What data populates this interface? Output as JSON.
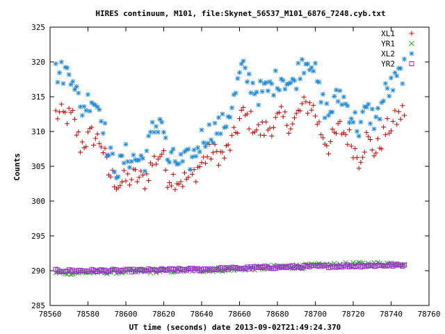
{
  "chart_data": {
    "type": "scatter",
    "title": "HIRES continuum, M101, file:Skynet_56537_M101_6876_7248.cyb.txt",
    "xlabel": "UT time (seconds) date 2013-09-02T21:49:24.370",
    "ylabel": "Counts",
    "xlim": [
      78560,
      78760
    ],
    "ylim": [
      285,
      325
    ],
    "xticks": [
      78560,
      78580,
      78600,
      78620,
      78640,
      78660,
      78680,
      78700,
      78720,
      78740,
      78760
    ],
    "yticks": [
      285,
      290,
      295,
      300,
      305,
      310,
      315,
      320,
      325
    ],
    "xtick_labels": [
      "78560",
      "78580",
      "78600",
      "78620",
      "78640",
      "78660",
      "78680",
      "78700",
      "78720",
      "78740",
      "78760"
    ],
    "ytick_labels": [
      "285",
      "290",
      "295",
      "300",
      "305",
      "310",
      "315",
      "320",
      "325"
    ],
    "grid": false,
    "legend_position": "top-right",
    "x_start": 78563,
    "x_end": 78747,
    "series": [
      {
        "name": "XL1",
        "marker": "plus",
        "color": "#cc0000",
        "knots": [
          [
            78563,
            312.5
          ],
          [
            78572,
            312
          ],
          [
            78576,
            308
          ],
          [
            78582,
            309.5
          ],
          [
            78587,
            308.5
          ],
          [
            78591,
            304
          ],
          [
            78596,
            302.5
          ],
          [
            78600,
            303
          ],
          [
            78605,
            303.5
          ],
          [
            78610,
            303
          ],
          [
            78614,
            305.5
          ],
          [
            78619,
            307
          ],
          [
            78622,
            303.5
          ],
          [
            78630,
            303
          ],
          [
            78635,
            303.5
          ],
          [
            78640,
            305.5
          ],
          [
            78645,
            307
          ],
          [
            78652,
            306.5
          ],
          [
            78657,
            309
          ],
          [
            78661,
            312.5
          ],
          [
            78666,
            311.5
          ],
          [
            78670,
            310
          ],
          [
            78675,
            310.5
          ],
          [
            78682,
            312
          ],
          [
            78688,
            311
          ],
          [
            78693,
            313.5
          ],
          [
            78698,
            314
          ],
          [
            78703,
            310
          ],
          [
            78707,
            308
          ],
          [
            78713,
            310.5
          ],
          [
            78718,
            309
          ],
          [
            78723,
            306
          ],
          [
            78727,
            309
          ],
          [
            78732,
            307
          ],
          [
            78737,
            310
          ],
          [
            78742,
            311.5
          ],
          [
            78747,
            313
          ]
        ],
        "noise": 1.6
      },
      {
        "name": "YR1",
        "marker": "cross",
        "color": "#22aa22",
        "knots": [
          [
            78563,
            289.7
          ],
          [
            78600,
            289.9
          ],
          [
            78640,
            290.1
          ],
          [
            78680,
            290.5
          ],
          [
            78720,
            290.9
          ],
          [
            78747,
            291
          ]
        ],
        "noise": 0.3
      },
      {
        "name": "XL2",
        "marker": "asterisk",
        "color": "#1e88d8",
        "knots": [
          [
            78563,
            318.5
          ],
          [
            78572,
            318.5
          ],
          [
            78576,
            313
          ],
          [
            78582,
            315
          ],
          [
            78587,
            313
          ],
          [
            78591,
            306.5
          ],
          [
            78596,
            304.5
          ],
          [
            78600,
            306.5
          ],
          [
            78605,
            306
          ],
          [
            78610,
            306
          ],
          [
            78614,
            310
          ],
          [
            78619,
            312
          ],
          [
            78622,
            306
          ],
          [
            78630,
            305.5
          ],
          [
            78635,
            306
          ],
          [
            78640,
            309
          ],
          [
            78645,
            310
          ],
          [
            78652,
            311
          ],
          [
            78657,
            314.5
          ],
          [
            78661,
            319
          ],
          [
            78666,
            317
          ],
          [
            78670,
            315.5
          ],
          [
            78675,
            316
          ],
          [
            78682,
            318
          ],
          [
            78688,
            316.5
          ],
          [
            78693,
            320
          ],
          [
            78698,
            320.5
          ],
          [
            78703,
            314.5
          ],
          [
            78707,
            312.5
          ],
          [
            78713,
            315.5
          ],
          [
            78718,
            313
          ],
          [
            78723,
            310.5
          ],
          [
            78727,
            313
          ],
          [
            78732,
            311.5
          ],
          [
            78737,
            315.5
          ],
          [
            78742,
            317
          ],
          [
            78747,
            319
          ]
        ],
        "noise": 1.8
      },
      {
        "name": "YR2",
        "marker": "square",
        "color": "#aa22dd",
        "knots": [
          [
            78563,
            290
          ],
          [
            78600,
            290
          ],
          [
            78640,
            290.2
          ],
          [
            78680,
            290.5
          ],
          [
            78720,
            290.7
          ],
          [
            78747,
            290.8
          ]
        ],
        "noise": 0.2
      }
    ]
  }
}
